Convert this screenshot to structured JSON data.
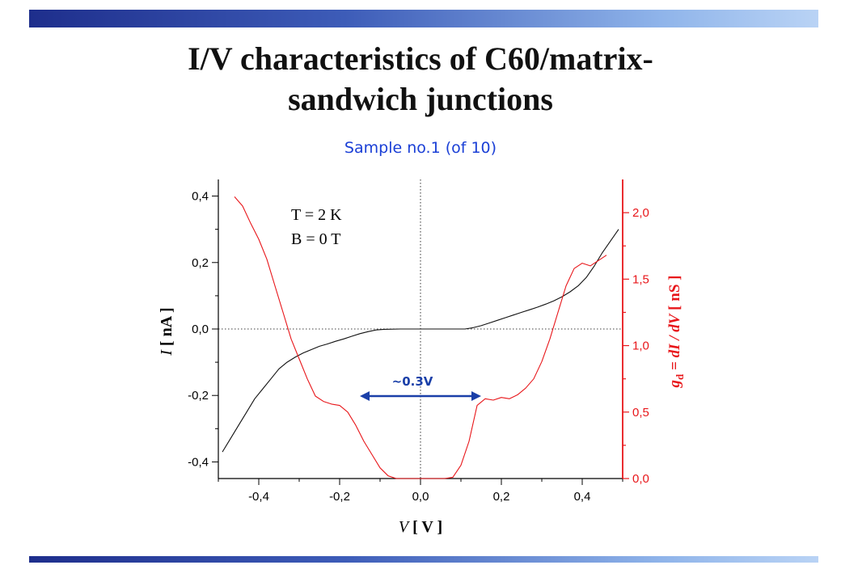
{
  "slide": {
    "title_line1": "I/V characteristics of C60/matrix-",
    "title_line2": "sandwich junctions",
    "subtitle": "Sample no.1 (of 10)"
  },
  "colors": {
    "current": "#111111",
    "conductance": "#e8161a",
    "arrow": "#1a3fa8",
    "subtitle": "#1a3fd6"
  },
  "chart_data": {
    "type": "line",
    "x_axis": {
      "label_var": "V",
      "label_unit": "[ V ]",
      "range": [
        -0.5,
        0.5
      ],
      "ticks": [
        "-0,4",
        "-0,2",
        "0,0",
        "0,2",
        "0,4"
      ],
      "tick_values": [
        -0.4,
        -0.2,
        0.0,
        0.2,
        0.4
      ]
    },
    "y_left": {
      "label_var": "I",
      "label_unit": "[ nA ]",
      "range": [
        -0.45,
        0.45
      ],
      "ticks": [
        "-0,4",
        "-0,2",
        "0,0",
        "0,2",
        "0,4"
      ],
      "tick_values": [
        -0.4,
        -0.2,
        0.0,
        0.2,
        0.4
      ]
    },
    "y_right": {
      "label_var": "g",
      "label_sub": "d",
      "label_rest": "= dI / dV",
      "label_unit": "[ nS ]",
      "range": [
        0.0,
        2.25
      ],
      "ticks": [
        "0,0",
        "0,5",
        "1,0",
        "1,5",
        "2,0"
      ],
      "tick_values": [
        0.0,
        0.5,
        1.0,
        1.5,
        2.0
      ]
    },
    "annotations": {
      "temperature": "T = 2 K",
      "field": "B = 0 T",
      "gap_label": "~0.3V",
      "gap_arrow": [
        -0.15,
        0.15
      ],
      "gap_arrow_y_right": 0.62
    },
    "grid": "dotted zero lines",
    "series": [
      {
        "axis": "left",
        "color": "black",
        "x": [
          -0.49,
          -0.47,
          -0.45,
          -0.43,
          -0.41,
          -0.39,
          -0.37,
          -0.35,
          -0.33,
          -0.31,
          -0.29,
          -0.27,
          -0.25,
          -0.23,
          -0.21,
          -0.19,
          -0.17,
          -0.15,
          -0.13,
          -0.11,
          -0.09,
          -0.05,
          0.0,
          0.05,
          0.11,
          0.13,
          0.15,
          0.17,
          0.19,
          0.21,
          0.23,
          0.25,
          0.27,
          0.29,
          0.31,
          0.33,
          0.35,
          0.37,
          0.39,
          0.41,
          0.43,
          0.45,
          0.47,
          0.49
        ],
        "y": [
          -0.37,
          -0.33,
          -0.29,
          -0.25,
          -0.21,
          -0.18,
          -0.15,
          -0.12,
          -0.1,
          -0.085,
          -0.072,
          -0.062,
          -0.052,
          -0.045,
          -0.037,
          -0.03,
          -0.022,
          -0.014,
          -0.008,
          -0.003,
          -0.001,
          0.0,
          0.0,
          0.0,
          0.0,
          0.004,
          0.01,
          0.018,
          0.026,
          0.034,
          0.042,
          0.05,
          0.058,
          0.066,
          0.075,
          0.085,
          0.097,
          0.112,
          0.13,
          0.155,
          0.19,
          0.23,
          0.265,
          0.3
        ]
      },
      {
        "axis": "right",
        "color": "red",
        "x": [
          -0.46,
          -0.44,
          -0.42,
          -0.4,
          -0.38,
          -0.36,
          -0.34,
          -0.32,
          -0.3,
          -0.28,
          -0.26,
          -0.24,
          -0.22,
          -0.2,
          -0.18,
          -0.16,
          -0.14,
          -0.12,
          -0.1,
          -0.08,
          -0.06,
          -0.04,
          -0.02,
          0.0,
          0.02,
          0.04,
          0.06,
          0.08,
          0.1,
          0.12,
          0.14,
          0.16,
          0.18,
          0.2,
          0.22,
          0.24,
          0.26,
          0.28,
          0.3,
          0.32,
          0.34,
          0.36,
          0.38,
          0.4,
          0.42,
          0.44,
          0.46
        ],
        "y": [
          2.12,
          2.05,
          1.92,
          1.8,
          1.65,
          1.45,
          1.25,
          1.05,
          0.9,
          0.75,
          0.62,
          0.58,
          0.56,
          0.55,
          0.5,
          0.4,
          0.28,
          0.18,
          0.08,
          0.02,
          0.0,
          0.0,
          0.0,
          0.0,
          0.0,
          0.0,
          0.0,
          0.01,
          0.1,
          0.28,
          0.55,
          0.6,
          0.59,
          0.61,
          0.6,
          0.63,
          0.68,
          0.75,
          0.88,
          1.05,
          1.25,
          1.45,
          1.58,
          1.62,
          1.6,
          1.64,
          1.68
        ]
      }
    ]
  }
}
